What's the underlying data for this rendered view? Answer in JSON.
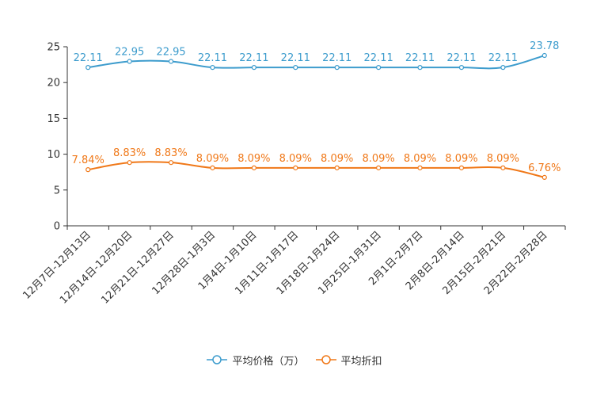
{
  "chart_data": {
    "type": "line",
    "categories": [
      "12月7日-12月13日",
      "12月14日-12月20日",
      "12月21日-12月27日",
      "12月28日-1月3日",
      "1月4日-1月10日",
      "1月11日-1月17日",
      "1月18日-1月24日",
      "1月25日-1月31日",
      "2月1日-2月7日",
      "2月8日-2月14日",
      "2月15日-2月21日",
      "2月22日-2月28日"
    ],
    "ylim": [
      0,
      25
    ],
    "yticks": [
      0,
      5,
      10,
      15,
      20,
      25
    ],
    "series": [
      {
        "name": "平均价格（万）",
        "color": "#3d9ccd",
        "values": [
          22.11,
          22.95,
          22.95,
          22.11,
          22.11,
          22.11,
          22.11,
          22.11,
          22.11,
          22.11,
          22.11,
          23.78
        ],
        "labels": [
          "22.11",
          "22.95",
          "22.95",
          "22.11",
          "22.11",
          "22.11",
          "22.11",
          "22.11",
          "22.11",
          "22.11",
          "22.11",
          "23.78"
        ]
      },
      {
        "name": "平均折扣",
        "color": "#f07818",
        "values": [
          7.84,
          8.83,
          8.83,
          8.09,
          8.09,
          8.09,
          8.09,
          8.09,
          8.09,
          8.09,
          8.09,
          6.76
        ],
        "labels": [
          "7.84%",
          "8.83%",
          "8.83%",
          "8.09%",
          "8.09%",
          "8.09%",
          "8.09%",
          "8.09%",
          "8.09%",
          "8.09%",
          "8.09%",
          "6.76%"
        ]
      }
    ],
    "title": "",
    "xlabel": "",
    "ylabel": "",
    "legend_position": "bottom"
  }
}
